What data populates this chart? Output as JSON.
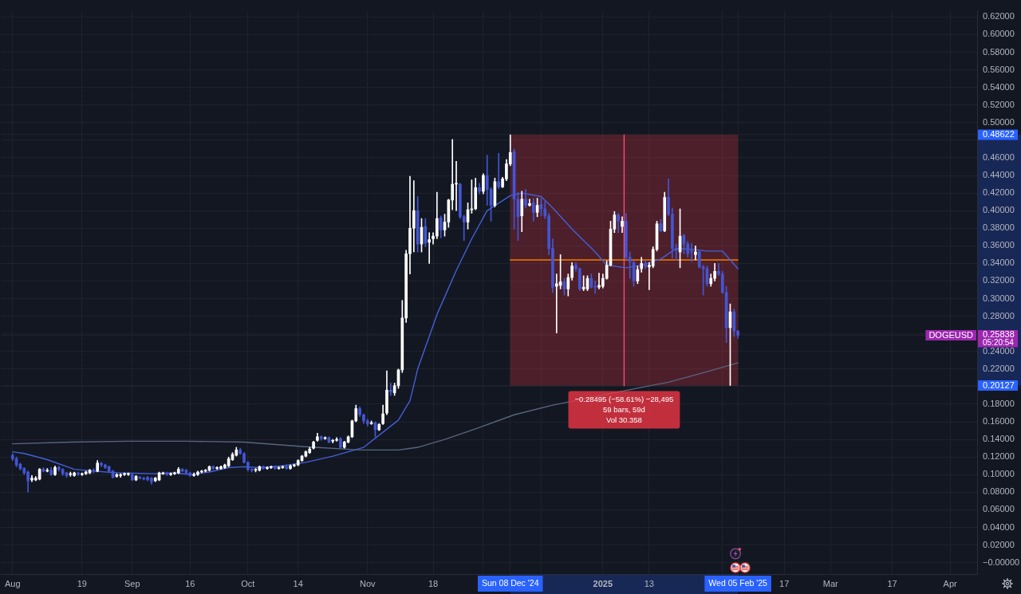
{
  "chart_data": {
    "type": "candlestick",
    "xlim": [
      "2024-07-29",
      "2025-04-08"
    ],
    "ylim": [
      -0.013,
      0.627
    ],
    "xticks": [
      {
        "value": "2024-08-01",
        "label": "Aug"
      },
      {
        "value": "2024-08-19",
        "label": "19"
      },
      {
        "value": "2024-09-01",
        "label": "Sep"
      },
      {
        "value": "2024-09-16",
        "label": "16"
      },
      {
        "value": "2024-10-01",
        "label": "Oct"
      },
      {
        "value": "2024-10-14",
        "label": "14"
      },
      {
        "value": "2024-11-01",
        "label": "Nov"
      },
      {
        "value": "2024-11-18",
        "label": "18"
      },
      {
        "value": "2024-12-01",
        "label": null
      },
      {
        "value": "2024-12-08",
        "label": "Sun 08 Dec '24"
      },
      {
        "value": "2024-12-16",
        "label": null
      },
      {
        "value": "2025-01-01",
        "label": "2025"
      },
      {
        "value": "2025-01-13",
        "label": "13"
      },
      {
        "value": "2025-02-01",
        "label": null
      },
      {
        "value": "2025-02-05",
        "label": "Wed 05 Feb '25"
      },
      {
        "value": "2025-02-17",
        "label": "17"
      },
      {
        "value": "2025-03-01",
        "label": "Mar"
      },
      {
        "value": "2025-03-17",
        "label": "17"
      },
      {
        "value": "2025-04-01",
        "label": "Apr"
      }
    ],
    "yticks": [
      {
        "value": 0,
        "label": "−0.00000"
      },
      {
        "value": 0.02,
        "label": "0.02000"
      },
      {
        "value": 0.04,
        "label": "0.04000"
      },
      {
        "value": 0.06,
        "label": "0.06000"
      },
      {
        "value": 0.08,
        "label": "0.08000"
      },
      {
        "value": 0.1,
        "label": "0.10000"
      },
      {
        "value": 0.12,
        "label": "0.12000"
      },
      {
        "value": 0.14,
        "label": "0.14000"
      },
      {
        "value": 0.16,
        "label": "0.16000"
      },
      {
        "value": 0.18,
        "label": "0.18000"
      },
      {
        "value": 0.2,
        "label": null
      },
      0.20127,
      {
        "value": 0.22,
        "label": "0.22000"
      },
      {
        "value": 0.24,
        "label": "0.24000"
      },
      0.25838,
      {
        "value": 0.26,
        "label": null
      },
      {
        "value": 0.28,
        "label": "0.28000"
      },
      {
        "value": 0.3,
        "label": "0.30000"
      },
      {
        "value": 0.32,
        "label": "0.32000"
      },
      {
        "value": 0.34,
        "label": "0.34000"
      },
      {
        "value": 0.36,
        "label": "0.36000"
      },
      {
        "value": 0.38,
        "label": "0.38000"
      },
      {
        "value": 0.4,
        "label": "0.40000"
      },
      {
        "value": 0.42,
        "label": "0.42000"
      },
      {
        "value": 0.44,
        "label": "0.44000"
      },
      {
        "value": 0.46,
        "label": "0.46000"
      },
      {
        "value": 0.48,
        "label": null
      },
      0.48622,
      {
        "value": 0.5,
        "label": "0.50000"
      },
      {
        "value": 0.52,
        "label": "0.52000"
      },
      {
        "value": 0.54,
        "label": "0.54000"
      },
      {
        "value": 0.56,
        "label": "0.56000"
      },
      {
        "value": 0.58,
        "label": "0.58000"
      },
      {
        "value": 0.6,
        "label": "0.60000"
      },
      {
        "value": 0.62,
        "label": "0.62000"
      }
    ],
    "grid": true,
    "series": [
      {
        "type": "line",
        "color": "#56657f",
        "x": [
          "2024-08-01",
          "2024-08-16",
          "2024-08-31",
          "2024-09-15",
          "2024-09-30",
          "2024-10-15",
          "2024-10-30",
          "2024-11-09",
          "2024-11-14",
          "2024-11-21",
          "2024-11-29",
          "2024-12-09",
          "2024-12-19",
          "2025-01-12",
          "2025-01-18",
          "2025-01-28",
          "2025-02-05"
        ],
        "values": [
          0.135,
          0.137,
          0.138,
          0.138,
          0.137,
          0.132,
          0.128,
          0.128,
          0.131,
          0.14,
          0.152,
          0.168,
          0.179,
          0.2,
          0.205,
          0.217,
          0.227
        ]
      },
      {
        "type": "line",
        "color": "#4460d8",
        "x": [
          "2024-08-01",
          "2024-08-04",
          "2024-08-10",
          "2024-08-17",
          "2024-08-22",
          "2024-08-28",
          "2024-09-07",
          "2024-09-12",
          "2024-09-16",
          "2024-09-21",
          "2024-09-26",
          "2024-09-30",
          "2024-10-04",
          "2024-10-10",
          "2024-10-16",
          "2024-10-23",
          "2024-10-31",
          "2024-11-09",
          "2024-11-12",
          "2024-11-14",
          "2024-11-19",
          "2024-11-24",
          "2024-11-28",
          "2024-12-02",
          "2024-12-08",
          "2024-12-11",
          "2024-12-16",
          "2024-12-19",
          "2024-12-24",
          "2024-12-30",
          "2025-01-02",
          "2025-01-07",
          "2025-01-11",
          "2025-01-16",
          "2025-01-20",
          "2025-01-24",
          "2025-01-28",
          "2025-02-01",
          "2025-02-05"
        ],
        "values": [
          0.126,
          0.124,
          0.117,
          0.106,
          0.104,
          0.102,
          0.101,
          0.102,
          0.1,
          0.103,
          0.108,
          0.109,
          0.108,
          0.11,
          0.114,
          0.121,
          0.131,
          0.162,
          0.184,
          0.22,
          0.282,
          0.332,
          0.368,
          0.4,
          0.417,
          0.42,
          0.416,
          0.403,
          0.379,
          0.353,
          0.338,
          0.335,
          0.338,
          0.345,
          0.357,
          0.356,
          0.354,
          0.354,
          0.334
        ]
      },
      {
        "type": "line",
        "color": "#f57c00",
        "x": [
          "2024-12-08",
          "2025-02-05"
        ],
        "values": [
          0.344,
          0.344
        ]
      },
      {
        "type": "line",
        "color": "#f05070",
        "x": [
          "2025-01-06T12:00",
          "2025-01-06T12:00"
        ],
        "values": [
          0.486,
          0.201
        ]
      },
      {
        "name": "DOGEUSD",
        "x": [
          "2024-08-01",
          "2024-08-02",
          "2024-08-03",
          "2024-08-04",
          "2024-08-05",
          "2024-08-06",
          "2024-08-07",
          "2024-08-08",
          "2024-08-09",
          "2024-08-10",
          "2024-08-11",
          "2024-08-12",
          "2024-08-13",
          "2024-08-14",
          "2024-08-15",
          "2024-08-16",
          "2024-08-17",
          "2024-08-18",
          "2024-08-19",
          "2024-08-20",
          "2024-08-21",
          "2024-08-22",
          "2024-08-23",
          "2024-08-24",
          "2024-08-25",
          "2024-08-26",
          "2024-08-27",
          "2024-08-28",
          "2024-08-29",
          "2024-08-30",
          "2024-08-31",
          "2024-09-01",
          "2024-09-02",
          "2024-09-03",
          "2024-09-04",
          "2024-09-05",
          "2024-09-06",
          "2024-09-07",
          "2024-09-08",
          "2024-09-09",
          "2024-09-10",
          "2024-09-11",
          "2024-09-12",
          "2024-09-13",
          "2024-09-14",
          "2024-09-15",
          "2024-09-16",
          "2024-09-17",
          "2024-09-18",
          "2024-09-19",
          "2024-09-20",
          "2024-09-21",
          "2024-09-22",
          "2024-09-23",
          "2024-09-24",
          "2024-09-25",
          "2024-09-26",
          "2024-09-27",
          "2024-09-28",
          "2024-09-29",
          "2024-09-30",
          "2024-10-01",
          "2024-10-02",
          "2024-10-03",
          "2024-10-04",
          "2024-10-05",
          "2024-10-06",
          "2024-10-07",
          "2024-10-08",
          "2024-10-09",
          "2024-10-10",
          "2024-10-11",
          "2024-10-12",
          "2024-10-13",
          "2024-10-14",
          "2024-10-15",
          "2024-10-16",
          "2024-10-17",
          "2024-10-18",
          "2024-10-19",
          "2024-10-20",
          "2024-10-21",
          "2024-10-22",
          "2024-10-23",
          "2024-10-24",
          "2024-10-25",
          "2024-10-26",
          "2024-10-27",
          "2024-10-28",
          "2024-10-29",
          "2024-10-30",
          "2024-10-31",
          "2024-11-01",
          "2024-11-02",
          "2024-11-03",
          "2024-11-04",
          "2024-11-05",
          "2024-11-06",
          "2024-11-07",
          "2024-11-08",
          "2024-11-09",
          "2024-11-10",
          "2024-11-11",
          "2024-11-12",
          "2024-11-13",
          "2024-11-14",
          "2024-11-15",
          "2024-11-16",
          "2024-11-17",
          "2024-11-18",
          "2024-11-19",
          "2024-11-20",
          "2024-11-21",
          "2024-11-22",
          "2024-11-23",
          "2024-11-24",
          "2024-11-25",
          "2024-11-26",
          "2024-11-27",
          "2024-11-28",
          "2024-11-29",
          "2024-11-30",
          "2024-12-01",
          "2024-12-02",
          "2024-12-03",
          "2024-12-04",
          "2024-12-05",
          "2024-12-06",
          "2024-12-07",
          "2024-12-08",
          "2024-12-09",
          "2024-12-10",
          "2024-12-11",
          "2024-12-12",
          "2024-12-13",
          "2024-12-14",
          "2024-12-15",
          "2024-12-16",
          "2024-12-17",
          "2024-12-18",
          "2024-12-19",
          "2024-12-20",
          "2024-12-21",
          "2024-12-22",
          "2024-12-23",
          "2024-12-24",
          "2024-12-25",
          "2024-12-26",
          "2024-12-27",
          "2024-12-28",
          "2024-12-29",
          "2024-12-30",
          "2024-12-31",
          "2025-01-01",
          "2025-01-02",
          "2025-01-03",
          "2025-01-04",
          "2025-01-05",
          "2025-01-06",
          "2025-01-07",
          "2025-01-08",
          "2025-01-09",
          "2025-01-10",
          "2025-01-11",
          "2025-01-12",
          "2025-01-13",
          "2025-01-14",
          "2025-01-15",
          "2025-01-16",
          "2025-01-17",
          "2025-01-18",
          "2025-01-19",
          "2025-01-20",
          "2025-01-21",
          "2025-01-22",
          "2025-01-23",
          "2025-01-24",
          "2025-01-25",
          "2025-01-26",
          "2025-01-27",
          "2025-01-28",
          "2025-01-29",
          "2025-01-30",
          "2025-01-31",
          "2025-02-01",
          "2025-02-02",
          "2025-02-03",
          "2025-02-04",
          "2025-02-05"
        ],
        "ohlc": [
          [
            0.122,
            0.124,
            0.116,
            0.118
          ],
          [
            0.118,
            0.12,
            0.109,
            0.111
          ],
          [
            0.112,
            0.113,
            0.105,
            0.107
          ],
          [
            0.107,
            0.108,
            0.1,
            0.102
          ],
          [
            0.103,
            0.104,
            0.08,
            0.093
          ],
          [
            0.094,
            0.099,
            0.092,
            0.096
          ],
          [
            0.094,
            0.098,
            0.093,
            0.096
          ],
          [
            0.095,
            0.107,
            0.094,
            0.106
          ],
          [
            0.106,
            0.108,
            0.103,
            0.104
          ],
          [
            0.104,
            0.107,
            0.103,
            0.105
          ],
          [
            0.105,
            0.108,
            0.099,
            0.1
          ],
          [
            0.1,
            0.11,
            0.099,
            0.108
          ],
          [
            0.108,
            0.11,
            0.104,
            0.106
          ],
          [
            0.106,
            0.107,
            0.099,
            0.101
          ],
          [
            0.102,
            0.103,
            0.097,
            0.099
          ],
          [
            0.1,
            0.103,
            0.098,
            0.101
          ],
          [
            0.099,
            0.103,
            0.098,
            0.102
          ],
          [
            0.102,
            0.103,
            0.099,
            0.1
          ],
          [
            0.1,
            0.102,
            0.099,
            0.101
          ],
          [
            0.101,
            0.104,
            0.1,
            0.103
          ],
          [
            0.102,
            0.106,
            0.101,
            0.105
          ],
          [
            0.105,
            0.107,
            0.102,
            0.104
          ],
          [
            0.104,
            0.116,
            0.103,
            0.113
          ],
          [
            0.113,
            0.114,
            0.109,
            0.111
          ],
          [
            0.111,
            0.112,
            0.107,
            0.108
          ],
          [
            0.109,
            0.11,
            0.103,
            0.104
          ],
          [
            0.104,
            0.105,
            0.096,
            0.097
          ],
          [
            0.098,
            0.101,
            0.097,
            0.1
          ],
          [
            0.099,
            0.101,
            0.097,
            0.1
          ],
          [
            0.1,
            0.102,
            0.099,
            0.101
          ],
          [
            0.1,
            0.102,
            0.099,
            0.101
          ],
          [
            0.1,
            0.101,
            0.093,
            0.094
          ],
          [
            0.094,
            0.099,
            0.093,
            0.098
          ],
          [
            0.097,
            0.098,
            0.095,
            0.096
          ],
          [
            0.096,
            0.097,
            0.094,
            0.095
          ],
          [
            0.097,
            0.098,
            0.093,
            0.094
          ],
          [
            0.096,
            0.097,
            0.089,
            0.092
          ],
          [
            0.093,
            0.097,
            0.092,
            0.096
          ],
          [
            0.094,
            0.103,
            0.093,
            0.102
          ],
          [
            0.101,
            0.103,
            0.1,
            0.102
          ],
          [
            0.102,
            0.103,
            0.099,
            0.1
          ],
          [
            0.1,
            0.102,
            0.099,
            0.101
          ],
          [
            0.101,
            0.103,
            0.1,
            0.102
          ],
          [
            0.102,
            0.108,
            0.101,
            0.106
          ],
          [
            0.106,
            0.107,
            0.103,
            0.104
          ],
          [
            0.105,
            0.106,
            0.101,
            0.102
          ],
          [
            0.102,
            0.103,
            0.098,
            0.099
          ],
          [
            0.099,
            0.102,
            0.098,
            0.1
          ],
          [
            0.1,
            0.104,
            0.099,
            0.103
          ],
          [
            0.103,
            0.105,
            0.102,
            0.104
          ],
          [
            0.104,
            0.106,
            0.103,
            0.105
          ],
          [
            0.105,
            0.11,
            0.104,
            0.109
          ],
          [
            0.109,
            0.11,
            0.106,
            0.107
          ],
          [
            0.107,
            0.109,
            0.106,
            0.108
          ],
          [
            0.107,
            0.11,
            0.106,
            0.109
          ],
          [
            0.108,
            0.112,
            0.107,
            0.111
          ],
          [
            0.11,
            0.12,
            0.109,
            0.118
          ],
          [
            0.117,
            0.125,
            0.116,
            0.123
          ],
          [
            0.122,
            0.131,
            0.121,
            0.128
          ],
          [
            0.128,
            0.13,
            0.123,
            0.124
          ],
          [
            0.124,
            0.125,
            0.113,
            0.114
          ],
          [
            0.114,
            0.115,
            0.104,
            0.106
          ],
          [
            0.106,
            0.107,
            0.103,
            0.105
          ],
          [
            0.105,
            0.107,
            0.103,
            0.106
          ],
          [
            0.105,
            0.11,
            0.104,
            0.109
          ],
          [
            0.109,
            0.11,
            0.106,
            0.107
          ],
          [
            0.107,
            0.109,
            0.106,
            0.108
          ],
          [
            0.108,
            0.11,
            0.107,
            0.109
          ],
          [
            0.109,
            0.11,
            0.106,
            0.107
          ],
          [
            0.107,
            0.109,
            0.106,
            0.108
          ],
          [
            0.108,
            0.11,
            0.107,
            0.109
          ],
          [
            0.109,
            0.11,
            0.106,
            0.107
          ],
          [
            0.107,
            0.111,
            0.106,
            0.11
          ],
          [
            0.11,
            0.112,
            0.109,
            0.111
          ],
          [
            0.111,
            0.117,
            0.11,
            0.116
          ],
          [
            0.116,
            0.122,
            0.115,
            0.121
          ],
          [
            0.121,
            0.127,
            0.12,
            0.126
          ],
          [
            0.125,
            0.131,
            0.124,
            0.129
          ],
          [
            0.13,
            0.138,
            0.129,
            0.137
          ],
          [
            0.139,
            0.147,
            0.138,
            0.143
          ],
          [
            0.143,
            0.144,
            0.139,
            0.141
          ],
          [
            0.141,
            0.143,
            0.14,
            0.142
          ],
          [
            0.142,
            0.143,
            0.136,
            0.137
          ],
          [
            0.138,
            0.14,
            0.136,
            0.139
          ],
          [
            0.139,
            0.142,
            0.138,
            0.14
          ],
          [
            0.141,
            0.142,
            0.13,
            0.131
          ],
          [
            0.131,
            0.138,
            0.13,
            0.137
          ],
          [
            0.137,
            0.144,
            0.136,
            0.143
          ],
          [
            0.143,
            0.162,
            0.142,
            0.161
          ],
          [
            0.161,
            0.179,
            0.16,
            0.175
          ],
          [
            0.175,
            0.177,
            0.166,
            0.168
          ],
          [
            0.168,
            0.169,
            0.158,
            0.161
          ],
          [
            0.161,
            0.163,
            0.155,
            0.158
          ],
          [
            0.158,
            0.161,
            0.157,
            0.159
          ],
          [
            0.159,
            0.16,
            0.143,
            0.151
          ],
          [
            0.151,
            0.158,
            0.15,
            0.157
          ],
          [
            0.158,
            0.179,
            0.157,
            0.169
          ],
          [
            0.17,
            0.218,
            0.168,
            0.196
          ],
          [
            0.196,
            0.204,
            0.19,
            0.194
          ],
          [
            0.193,
            0.204,
            0.19,
            0.201
          ],
          [
            0.201,
            0.22,
            0.198,
            0.219
          ],
          [
            0.219,
            0.298,
            0.216,
            0.278
          ],
          [
            0.278,
            0.355,
            0.273,
            0.351
          ],
          [
            0.351,
            0.439,
            0.328,
            0.38
          ],
          [
            0.38,
            0.434,
            0.353,
            0.4
          ],
          [
            0.4,
            0.416,
            0.353,
            0.362
          ],
          [
            0.362,
            0.391,
            0.353,
            0.381
          ],
          [
            0.382,
            0.391,
            0.359,
            0.363
          ],
          [
            0.364,
            0.375,
            0.34,
            0.367
          ],
          [
            0.368,
            0.375,
            0.362,
            0.371
          ],
          [
            0.371,
            0.421,
            0.368,
            0.391
          ],
          [
            0.392,
            0.394,
            0.369,
            0.378
          ],
          [
            0.378,
            0.396,
            0.371,
            0.387
          ],
          [
            0.387,
            0.413,
            0.381,
            0.412
          ],
          [
            0.412,
            0.481,
            0.401,
            0.43
          ],
          [
            0.43,
            0.456,
            0.4,
            0.431
          ],
          [
            0.43,
            0.431,
            0.391,
            0.393
          ],
          [
            0.393,
            0.395,
            0.366,
            0.387
          ],
          [
            0.387,
            0.409,
            0.379,
            0.401
          ],
          [
            0.401,
            0.435,
            0.397,
            0.402
          ],
          [
            0.402,
            0.437,
            0.401,
            0.426
          ],
          [
            0.426,
            0.431,
            0.419,
            0.422
          ],
          [
            0.422,
            0.442,
            0.419,
            0.44
          ],
          [
            0.44,
            0.463,
            0.406,
            0.424
          ],
          [
            0.424,
            0.426,
            0.388,
            0.406
          ],
          [
            0.406,
            0.437,
            0.404,
            0.433
          ],
          [
            0.433,
            0.465,
            0.425,
            0.427
          ],
          [
            0.427,
            0.438,
            0.426,
            0.436
          ],
          [
            0.436,
            0.458,
            0.434,
            0.453
          ],
          [
            0.453,
            0.48622,
            0.451,
            0.466
          ],
          [
            0.467,
            0.47,
            0.379,
            0.413
          ],
          [
            0.413,
            0.421,
            0.366,
            0.393
          ],
          [
            0.394,
            0.422,
            0.376,
            0.413
          ],
          [
            0.413,
            0.424,
            0.403,
            0.406
          ],
          [
            0.406,
            0.413,
            0.405,
            0.408
          ],
          [
            0.409,
            0.414,
            0.388,
            0.398
          ],
          [
            0.398,
            0.414,
            0.393,
            0.406
          ],
          [
            0.407,
            0.414,
            0.394,
            0.402
          ],
          [
            0.402,
            0.41,
            0.391,
            0.394
          ],
          [
            0.394,
            0.397,
            0.35,
            0.357
          ],
          [
            0.357,
            0.368,
            0.307,
            0.313
          ],
          [
            0.314,
            0.328,
            0.261,
            0.317
          ],
          [
            0.315,
            0.35,
            0.311,
            0.319
          ],
          [
            0.319,
            0.323,
            0.304,
            0.311
          ],
          [
            0.311,
            0.328,
            0.303,
            0.324
          ],
          [
            0.324,
            0.341,
            0.321,
            0.337
          ],
          [
            0.338,
            0.341,
            0.331,
            0.334
          ],
          [
            0.334,
            0.335,
            0.309,
            0.311
          ],
          [
            0.311,
            0.326,
            0.309,
            0.313
          ],
          [
            0.311,
            0.326,
            0.309,
            0.323
          ],
          [
            0.323,
            0.328,
            0.312,
            0.313
          ],
          [
            0.314,
            0.32,
            0.306,
            0.313
          ],
          [
            0.313,
            0.329,
            0.311,
            0.315
          ],
          [
            0.314,
            0.328,
            0.312,
            0.323
          ],
          [
            0.323,
            0.343,
            0.322,
            0.338
          ],
          [
            0.338,
            0.388,
            0.337,
            0.379
          ],
          [
            0.379,
            0.399,
            0.375,
            0.395
          ],
          [
            0.395,
            0.397,
            0.375,
            0.388
          ],
          [
            0.382,
            0.393,
            0.375,
            0.388
          ],
          [
            0.388,
            0.397,
            0.344,
            0.347
          ],
          [
            0.347,
            0.353,
            0.323,
            0.342
          ],
          [
            0.341,
            0.343,
            0.314,
            0.32
          ],
          [
            0.32,
            0.337,
            0.317,
            0.333
          ],
          [
            0.334,
            0.347,
            0.33,
            0.34
          ],
          [
            0.34,
            0.343,
            0.334,
            0.336
          ],
          [
            0.336,
            0.341,
            0.31,
            0.338
          ],
          [
            0.337,
            0.359,
            0.335,
            0.356
          ],
          [
            0.356,
            0.388,
            0.354,
            0.385
          ],
          [
            0.385,
            0.39,
            0.376,
            0.377
          ],
          [
            0.377,
            0.421,
            0.376,
            0.415
          ],
          [
            0.415,
            0.436,
            0.394,
            0.396
          ],
          [
            0.396,
            0.403,
            0.346,
            0.357
          ],
          [
            0.357,
            0.362,
            0.344,
            0.355
          ],
          [
            0.353,
            0.402,
            0.335,
            0.371
          ],
          [
            0.372,
            0.373,
            0.351,
            0.362
          ],
          [
            0.362,
            0.365,
            0.347,
            0.351
          ],
          [
            0.354,
            0.363,
            0.342,
            0.353
          ],
          [
            0.35,
            0.36,
            0.344,
            0.353
          ],
          [
            0.353,
            0.354,
            0.335,
            0.336
          ],
          [
            0.336,
            0.338,
            0.304,
            0.334
          ],
          [
            0.334,
            0.337,
            0.314,
            0.317
          ],
          [
            0.317,
            0.328,
            0.314,
            0.323
          ],
          [
            0.323,
            0.34,
            0.32,
            0.331
          ],
          [
            0.331,
            0.34,
            0.326,
            0.328
          ],
          [
            0.328,
            0.331,
            0.306,
            0.307
          ],
          [
            0.307,
            0.314,
            0.25,
            0.267
          ],
          [
            0.267,
            0.294,
            0.20127,
            0.285
          ],
          [
            0.285,
            0.288,
            0.257,
            0.263
          ],
          [
            0.263,
            0.264,
            0.255,
            0.25838
          ]
        ],
        "colors": [
          "#4356d4",
          "#4356d4",
          "#4356d4",
          "#4356d4",
          "#4356d4",
          "#ffffff",
          "#ffffff",
          "#ffffff",
          "#4356d4",
          "#ffffff",
          "#4356d4",
          "#ffffff",
          "#4356d4",
          "#4356d4",
          "#4356d4",
          "#ffffff",
          "#ffffff",
          "#4356d4",
          "#ffffff",
          "#ffffff",
          "#ffffff",
          "#4356d4",
          "#ffffff",
          "#4356d4",
          "#4356d4",
          "#4356d4",
          "#4356d4",
          "#ffffff",
          "#ffffff",
          "#ffffff",
          "#ffffff",
          "#4356d4",
          "#ffffff",
          "#4356d4",
          "#4356d4",
          "#4356d4",
          "#4356d4",
          "#ffffff",
          "#ffffff",
          "#ffffff",
          "#4356d4",
          "#ffffff",
          "#ffffff",
          "#ffffff",
          "#4356d4",
          "#4356d4",
          "#4356d4",
          "#ffffff",
          "#ffffff",
          "#ffffff",
          "#ffffff",
          "#ffffff",
          "#4356d4",
          "#ffffff",
          "#ffffff",
          "#ffffff",
          "#ffffff",
          "#ffffff",
          "#ffffff",
          "#4356d4",
          "#4356d4",
          "#4356d4",
          "#4356d4",
          "#ffffff",
          "#ffffff",
          "#4356d4",
          "#ffffff",
          "#ffffff",
          "#4356d4",
          "#ffffff",
          "#ffffff",
          "#4356d4",
          "#ffffff",
          "#ffffff",
          "#ffffff",
          "#ffffff",
          "#ffffff",
          "#ffffff",
          "#ffffff",
          "#ffffff",
          "#4356d4",
          "#ffffff",
          "#4356d4",
          "#ffffff",
          "#ffffff",
          "#4356d4",
          "#ffffff",
          "#ffffff",
          "#ffffff",
          "#ffffff",
          "#4356d4",
          "#4356d4",
          "#4356d4",
          "#ffffff",
          "#4356d4",
          "#ffffff",
          "#ffffff",
          "#ffffff",
          "#4356d4",
          "#ffffff",
          "#ffffff",
          "#ffffff",
          "#ffffff",
          "#ffffff",
          "#ffffff",
          "#4356d4",
          "#ffffff",
          "#4356d4",
          "#ffffff",
          "#ffffff",
          "#ffffff",
          "#4356d4",
          "#ffffff",
          "#ffffff",
          "#ffffff",
          "#ffffff",
          "#4356d4",
          "#4356d4",
          "#ffffff",
          "#ffffff",
          "#ffffff",
          "#4356d4",
          "#ffffff",
          "#4356d4",
          "#4356d4",
          "#ffffff",
          "#4356d4",
          "#ffffff",
          "#ffffff",
          "#ffffff",
          "#4356d4",
          "#4356d4",
          "#ffffff",
          "#4356d4",
          "#ffffff",
          "#4356d4",
          "#ffffff",
          "#4356d4",
          "#4356d4",
          "#4356d4",
          "#4356d4",
          "#ffffff",
          "#ffffff",
          "#4356d4",
          "#ffffff",
          "#ffffff",
          "#4356d4",
          "#4356d4",
          "#ffffff",
          "#ffffff",
          "#4356d4",
          "#4356d4",
          "#ffffff",
          "#ffffff",
          "#ffffff",
          "#ffffff",
          "#ffffff",
          "#4356d4",
          "#ffffff",
          "#4356d4",
          "#4356d4",
          "#4356d4",
          "#ffffff",
          "#ffffff",
          "#4356d4",
          "#ffffff",
          "#ffffff",
          "#ffffff",
          "#4356d4",
          "#ffffff",
          "#4356d4",
          "#4356d4",
          "#4356d4",
          "#ffffff",
          "#4356d4",
          "#4356d4",
          "#4356d4",
          "#ffffff",
          "#4356d4",
          "#4356d4",
          "#4356d4",
          "#ffffff",
          "#ffffff",
          "#4356d4",
          "#4356d4",
          "#4356d4",
          "#ffffff",
          "#4356d4",
          "#4356d4"
        ]
      }
    ],
    "bands": [
      {
        "axis": "x",
        "from": "2024-12-08",
        "to": "2025-02-05",
        "color": "#f23645"
      }
    ],
    "annotations": [
      "05:20:54",
      {
        "text": "−0.28495 (−58.61%) −28,495\n59 bars, 59d\nVol 30.358",
        "x": "2025-01-06T12:00",
        "y": 0.20127
      }
    ]
  }
}
